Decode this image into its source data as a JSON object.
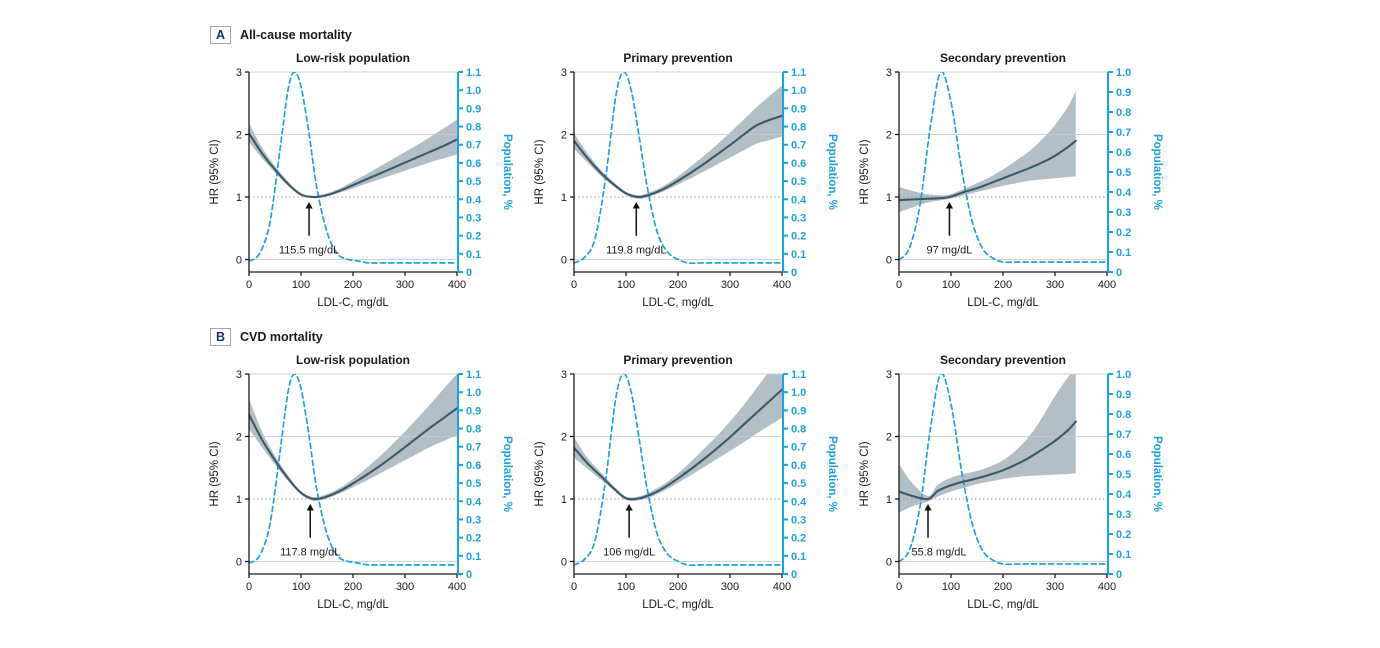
{
  "colors": {
    "accent_blue": "#1ba3e1",
    "hr_line": "#3c5a66",
    "ci_band": "#aab8c1",
    "grid": "#c9c9c9",
    "reference_dotted": "#999999",
    "axis_black": "#1a1a1a",
    "text": "#1a1a1a",
    "panel_letter": "#16365c"
  },
  "panels": [
    {
      "label": "A",
      "title": "All-cause mortality"
    },
    {
      "label": "B",
      "title": "CVD mortality"
    }
  ],
  "chart_data": [
    {
      "type": "line",
      "panel": "A",
      "title": "Low-risk population",
      "xlabel": "LDL-C, mg/dL",
      "ylabel_left": "HR (95% CI)",
      "ylabel_right": "Population, %",
      "xlim": [
        0,
        400
      ],
      "xticks": [
        0,
        100,
        200,
        300,
        400
      ],
      "ylim_left": [
        0,
        3
      ],
      "yticks_left": [
        0,
        1,
        2,
        3
      ],
      "ylim_right": [
        0,
        1.1
      ],
      "yticks_right": [
        0,
        0.1,
        0.2,
        0.3,
        0.4,
        0.5,
        0.6,
        0.7,
        0.8,
        0.9,
        1.0,
        1.1
      ],
      "reference_line_hr": 1.0,
      "gridlines_hr": [
        0,
        2,
        3
      ],
      "nadir": {
        "x": 115.5,
        "label": "115.5 mg/dL"
      },
      "hr_series": {
        "x": [
          0,
          25,
          50,
          75,
          100,
          125,
          150,
          175,
          200,
          225,
          250,
          275,
          300,
          325,
          350,
          375,
          400
        ],
        "hr": [
          2.02,
          1.7,
          1.44,
          1.21,
          1.04,
          1.0,
          1.03,
          1.1,
          1.19,
          1.28,
          1.37,
          1.46,
          1.55,
          1.64,
          1.73,
          1.82,
          1.92
        ],
        "lo": [
          1.88,
          1.62,
          1.39,
          1.18,
          1.02,
          0.98,
          1.01,
          1.07,
          1.14,
          1.21,
          1.28,
          1.35,
          1.42,
          1.49,
          1.56,
          1.62,
          1.68
        ],
        "hi": [
          2.18,
          1.79,
          1.5,
          1.25,
          1.06,
          1.02,
          1.06,
          1.14,
          1.25,
          1.36,
          1.48,
          1.6,
          1.72,
          1.84,
          1.97,
          2.1,
          2.24
        ]
      },
      "population_series": {
        "x": [
          0,
          20,
          40,
          60,
          75,
          87,
          100,
          115,
          130,
          150,
          170,
          190,
          210,
          230,
          260,
          300,
          350,
          400
        ],
        "y": [
          0.06,
          0.1,
          0.27,
          0.68,
          1.0,
          1.1,
          1.02,
          0.77,
          0.47,
          0.22,
          0.1,
          0.07,
          0.06,
          0.05,
          0.05,
          0.05,
          0.05,
          0.05
        ]
      }
    },
    {
      "type": "line",
      "panel": "A",
      "title": "Primary prevention",
      "xlabel": "LDL-C, mg/dL",
      "ylabel_left": "HR (95% CI)",
      "ylabel_right": "Population, %",
      "xlim": [
        0,
        400
      ],
      "xticks": [
        0,
        100,
        200,
        300,
        400
      ],
      "ylim_left": [
        0,
        3
      ],
      "yticks_left": [
        0,
        1,
        2,
        3
      ],
      "ylim_right": [
        0,
        1.1
      ],
      "yticks_right": [
        0,
        0.1,
        0.2,
        0.3,
        0.4,
        0.5,
        0.6,
        0.7,
        0.8,
        0.9,
        1.0,
        1.1
      ],
      "reference_line_hr": 1.0,
      "gridlines_hr": [
        0,
        2,
        3
      ],
      "nadir": {
        "x": 119.8,
        "label": "119.8 mg/dL"
      },
      "hr_series": {
        "x": [
          0,
          25,
          50,
          75,
          100,
          125,
          150,
          175,
          200,
          225,
          250,
          275,
          300,
          325,
          350,
          375,
          400
        ],
        "hr": [
          1.9,
          1.63,
          1.4,
          1.21,
          1.06,
          1.0,
          1.05,
          1.14,
          1.26,
          1.39,
          1.53,
          1.68,
          1.83,
          1.99,
          2.14,
          2.23,
          2.3
        ],
        "lo": [
          1.77,
          1.56,
          1.35,
          1.18,
          1.03,
          0.97,
          1.02,
          1.1,
          1.2,
          1.3,
          1.41,
          1.52,
          1.63,
          1.74,
          1.85,
          1.91,
          1.97
        ],
        "hi": [
          2.02,
          1.71,
          1.45,
          1.25,
          1.08,
          1.03,
          1.09,
          1.19,
          1.33,
          1.49,
          1.66,
          1.84,
          2.03,
          2.23,
          2.43,
          2.61,
          2.78
        ]
      },
      "population_series": {
        "x": [
          0,
          20,
          40,
          60,
          80,
          95,
          110,
          125,
          140,
          160,
          180,
          200,
          220,
          250,
          300,
          400
        ],
        "y": [
          0.05,
          0.08,
          0.18,
          0.5,
          0.96,
          1.1,
          1.0,
          0.75,
          0.48,
          0.22,
          0.11,
          0.07,
          0.05,
          0.05,
          0.05,
          0.05
        ]
      }
    },
    {
      "type": "line",
      "panel": "A",
      "title": "Secondary prevention",
      "xlabel": "LDL-C, mg/dL",
      "ylabel_left": "HR (95% CI)",
      "ylabel_right": "Population, %",
      "xlim": [
        0,
        400
      ],
      "xticks": [
        0,
        100,
        200,
        300,
        400
      ],
      "ylim_left": [
        0,
        3
      ],
      "yticks_left": [
        0,
        1,
        2,
        3
      ],
      "ylim_right": [
        0,
        1.0
      ],
      "yticks_right": [
        0,
        0.1,
        0.2,
        0.3,
        0.4,
        0.5,
        0.6,
        0.7,
        0.8,
        0.9,
        1.0
      ],
      "reference_line_hr": 1.0,
      "gridlines_hr": [
        0,
        2,
        3
      ],
      "nadir": {
        "x": 97,
        "label": "97 mg/dL"
      },
      "hr_series": {
        "x": [
          0,
          25,
          50,
          75,
          97,
          125,
          150,
          175,
          200,
          225,
          250,
          275,
          300,
          325,
          340
        ],
        "hr": [
          0.95,
          0.96,
          0.97,
          0.98,
          1.0,
          1.08,
          1.14,
          1.22,
          1.3,
          1.38,
          1.46,
          1.55,
          1.66,
          1.8,
          1.9
        ],
        "lo": [
          0.76,
          0.83,
          0.9,
          0.94,
          0.97,
          1.03,
          1.08,
          1.13,
          1.18,
          1.22,
          1.26,
          1.28,
          1.3,
          1.32,
          1.33
        ],
        "hi": [
          1.16,
          1.1,
          1.05,
          1.03,
          1.04,
          1.13,
          1.22,
          1.32,
          1.44,
          1.58,
          1.73,
          1.92,
          2.15,
          2.45,
          2.7
        ]
      },
      "population_series": {
        "x": [
          0,
          20,
          40,
          60,
          80,
          100,
          120,
          140,
          160,
          180,
          200,
          230,
          260,
          300,
          350,
          400
        ],
        "y": [
          0.06,
          0.12,
          0.33,
          0.72,
          1.0,
          0.85,
          0.52,
          0.26,
          0.12,
          0.07,
          0.05,
          0.05,
          0.05,
          0.05,
          0.05,
          0.05
        ]
      }
    },
    {
      "type": "line",
      "panel": "B",
      "title": "Low-risk population",
      "xlabel": "LDL-C, mg/dL",
      "ylabel_left": "HR (95% CI)",
      "ylabel_right": "Population, %",
      "xlim": [
        0,
        400
      ],
      "xticks": [
        0,
        100,
        200,
        300,
        400
      ],
      "ylim_left": [
        0,
        3
      ],
      "yticks_left": [
        0,
        1,
        2,
        3
      ],
      "ylim_right": [
        0,
        1.1
      ],
      "yticks_right": [
        0,
        0.1,
        0.2,
        0.3,
        0.4,
        0.5,
        0.6,
        0.7,
        0.8,
        0.9,
        1.0,
        1.1
      ],
      "reference_line_hr": 1.0,
      "gridlines_hr": [
        0,
        2,
        3
      ],
      "nadir": {
        "x": 117.8,
        "label": "117.8 mg/dL"
      },
      "hr_series": {
        "x": [
          0,
          25,
          50,
          75,
          100,
          125,
          150,
          175,
          200,
          225,
          250,
          275,
          300,
          325,
          350,
          375,
          400
        ],
        "hr": [
          2.35,
          1.95,
          1.62,
          1.33,
          1.1,
          1.0,
          1.04,
          1.13,
          1.25,
          1.38,
          1.52,
          1.67,
          1.83,
          1.99,
          2.15,
          2.3,
          2.45
        ],
        "lo": [
          2.12,
          1.83,
          1.55,
          1.29,
          1.07,
          0.97,
          1.01,
          1.09,
          1.19,
          1.29,
          1.4,
          1.51,
          1.62,
          1.73,
          1.84,
          1.93,
          2.02
        ],
        "hi": [
          2.6,
          2.08,
          1.69,
          1.38,
          1.12,
          1.03,
          1.08,
          1.18,
          1.32,
          1.49,
          1.67,
          1.87,
          2.08,
          2.3,
          2.53,
          2.77,
          3.0
        ]
      },
      "population_series": {
        "x": [
          0,
          20,
          40,
          60,
          75,
          87,
          100,
          115,
          130,
          150,
          170,
          190,
          210,
          230,
          260,
          300,
          350,
          400
        ],
        "y": [
          0.06,
          0.1,
          0.27,
          0.68,
          1.0,
          1.1,
          1.02,
          0.77,
          0.47,
          0.22,
          0.1,
          0.07,
          0.06,
          0.05,
          0.05,
          0.05,
          0.05,
          0.05
        ]
      }
    },
    {
      "type": "line",
      "panel": "B",
      "title": "Primary prevention",
      "xlabel": "LDL-C, mg/dL",
      "ylabel_left": "HR (95% CI)",
      "ylabel_right": "Population, %",
      "xlim": [
        0,
        400
      ],
      "xticks": [
        0,
        100,
        200,
        300,
        400
      ],
      "ylim_left": [
        0,
        3
      ],
      "yticks_left": [
        0,
        1,
        2,
        3
      ],
      "ylim_right": [
        0,
        1.1
      ],
      "yticks_right": [
        0,
        0.1,
        0.2,
        0.3,
        0.4,
        0.5,
        0.6,
        0.7,
        0.8,
        0.9,
        1.0,
        1.1
      ],
      "reference_line_hr": 1.0,
      "gridlines_hr": [
        0,
        2,
        3
      ],
      "nadir": {
        "x": 106,
        "label": "106 mg/dL"
      },
      "hr_series": {
        "x": [
          0,
          25,
          50,
          75,
          100,
          125,
          150,
          175,
          200,
          225,
          250,
          275,
          300,
          325,
          350,
          375,
          400
        ],
        "hr": [
          1.82,
          1.58,
          1.38,
          1.18,
          1.01,
          1.01,
          1.08,
          1.19,
          1.33,
          1.48,
          1.64,
          1.81,
          1.99,
          2.18,
          2.37,
          2.56,
          2.75
        ],
        "lo": [
          1.66,
          1.49,
          1.32,
          1.15,
          0.99,
          0.98,
          1.04,
          1.14,
          1.26,
          1.38,
          1.51,
          1.64,
          1.77,
          1.9,
          2.04,
          2.17,
          2.3
        ],
        "hi": [
          1.99,
          1.67,
          1.44,
          1.22,
          1.04,
          1.04,
          1.13,
          1.25,
          1.41,
          1.6,
          1.8,
          2.01,
          2.24,
          2.49,
          2.76,
          3.04,
          3.3
        ]
      },
      "population_series": {
        "x": [
          0,
          20,
          40,
          60,
          80,
          95,
          110,
          125,
          140,
          160,
          180,
          200,
          220,
          250,
          300,
          400
        ],
        "y": [
          0.05,
          0.08,
          0.18,
          0.5,
          0.96,
          1.1,
          1.0,
          0.75,
          0.48,
          0.22,
          0.11,
          0.07,
          0.05,
          0.05,
          0.05,
          0.05
        ]
      }
    },
    {
      "type": "line",
      "panel": "B",
      "title": "Secondary prevention",
      "xlabel": "LDL-C, mg/dL",
      "ylabel_left": "HR (95% CI)",
      "ylabel_right": "Population, %",
      "xlim": [
        0,
        400
      ],
      "xticks": [
        0,
        100,
        200,
        300,
        400
      ],
      "ylim_left": [
        0,
        3
      ],
      "yticks_left": [
        0,
        1,
        2,
        3
      ],
      "ylim_right": [
        0,
        1.0
      ],
      "yticks_right": [
        0,
        0.1,
        0.2,
        0.3,
        0.4,
        0.5,
        0.6,
        0.7,
        0.8,
        0.9,
        1.0
      ],
      "reference_line_hr": 1.0,
      "gridlines_hr": [
        0,
        2,
        3
      ],
      "nadir": {
        "x": 55.8,
        "label": "55.8 mg/dL"
      },
      "hr_series": {
        "x": [
          0,
          25,
          55.8,
          75,
          100,
          125,
          150,
          175,
          200,
          225,
          250,
          275,
          300,
          325,
          340
        ],
        "hr": [
          1.12,
          1.05,
          1.0,
          1.13,
          1.22,
          1.28,
          1.33,
          1.39,
          1.46,
          1.55,
          1.66,
          1.79,
          1.93,
          2.1,
          2.24
        ],
        "lo": [
          0.78,
          0.88,
          0.96,
          1.04,
          1.12,
          1.18,
          1.24,
          1.28,
          1.32,
          1.35,
          1.37,
          1.38,
          1.39,
          1.4,
          1.41
        ],
        "hi": [
          1.56,
          1.26,
          1.05,
          1.23,
          1.34,
          1.4,
          1.45,
          1.52,
          1.62,
          1.78,
          2.0,
          2.3,
          2.65,
          2.95,
          3.1
        ]
      },
      "population_series": {
        "x": [
          0,
          20,
          40,
          60,
          80,
          100,
          120,
          140,
          160,
          180,
          200,
          230,
          260,
          300,
          350,
          400
        ],
        "y": [
          0.06,
          0.12,
          0.33,
          0.72,
          1.0,
          0.85,
          0.52,
          0.26,
          0.12,
          0.07,
          0.05,
          0.05,
          0.05,
          0.05,
          0.05,
          0.05
        ]
      }
    }
  ]
}
